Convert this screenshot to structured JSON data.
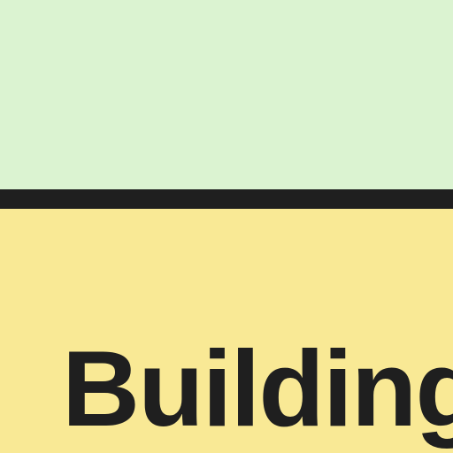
{
  "colors": {
    "top_background": "#dbf3d1",
    "divider": "#1f1f1f",
    "bottom_background": "#f9e995",
    "text": "#1f1f1f"
  },
  "label": {
    "text": "Building"
  }
}
